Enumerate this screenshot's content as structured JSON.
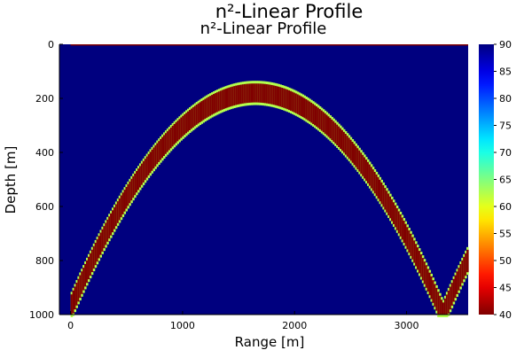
{
  "figure_title": "n²-Linear Profile",
  "chart_data": {
    "type": "heatmap",
    "title": "n²-Linear Profile",
    "xlabel": "Range [m]",
    "ylabel": "Depth [m]",
    "xlim": [
      -100,
      3550
    ],
    "ylim": [
      1000,
      0
    ],
    "x_ticks": [
      "0",
      "1000",
      "2000",
      "3000"
    ],
    "x_tick_values": [
      0,
      1000,
      2000,
      3000
    ],
    "y_ticks": [
      "0",
      "200",
      "400",
      "600",
      "800",
      "1000"
    ],
    "y_tick_values": [
      0,
      200,
      400,
      600,
      800,
      1000
    ],
    "colorbar": {
      "colormap": "jet-reversed",
      "min": 40,
      "max": 90,
      "ticks": [
        "40",
        "45",
        "50",
        "55",
        "60",
        "65",
        "70",
        "75",
        "80",
        "85",
        "90"
      ],
      "tick_values": [
        40,
        45,
        50,
        55,
        60,
        65,
        70,
        75,
        80,
        85,
        90
      ]
    },
    "background_value": 90,
    "ray_value": 40,
    "ray_vertex": {
      "x": 1650,
      "y": 180
    },
    "ray_start": {
      "x": 0,
      "y": 975
    },
    "ray_end_x": 3550,
    "ray_bounce_depth": 1000,
    "ray_thickness_m": 70,
    "surface_value": 40,
    "surface_depth": 0,
    "grid": false,
    "legend": "none"
  }
}
